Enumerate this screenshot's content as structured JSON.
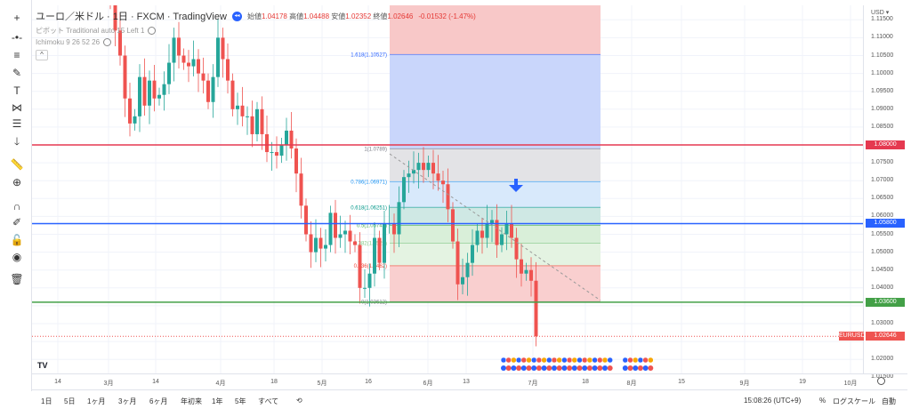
{
  "legend": {
    "symbol": "ユーロ／米ドル · 1日 · FXCM · TradingView",
    "ohlc": [
      {
        "k": "始値",
        "v": "1.04178"
      },
      {
        "k": "高値",
        "v": "1.04488"
      },
      {
        "k": "安値",
        "v": "1.02352"
      },
      {
        "k": "終値",
        "v": "1.02646"
      }
    ],
    "change": "-0.01532 (-1.47%)",
    "indicators": [
      "ピボット Traditional auto 15 Left 1",
      "Ichimoku 9 26 52 26"
    ],
    "collapse": "^"
  },
  "toolbar": [
    {
      "icon": "crosshair-icon",
      "g": "+"
    },
    {
      "icon": "horizontal-line-icon",
      "g": "-•-"
    },
    {
      "icon": "channel-icon",
      "g": "≡"
    },
    {
      "icon": "brush-icon",
      "g": "✎"
    },
    {
      "icon": "text-icon",
      "g": "T"
    },
    {
      "icon": "pattern-icon",
      "g": "⋈"
    },
    {
      "icon": "forecast-icon",
      "g": "☰"
    },
    {
      "icon": "arrow-down-icon",
      "g": "🡓"
    },
    {
      "icon": "ruler-icon",
      "g": "📏"
    },
    {
      "icon": "zoom-icon",
      "g": "⊕"
    },
    {
      "icon": "magnet-icon",
      "g": "∩"
    },
    {
      "icon": "lock-drawings-icon",
      "g": "✐"
    },
    {
      "icon": "lock-icon",
      "g": "🔓"
    },
    {
      "icon": "eye-icon",
      "g": "◉"
    },
    {
      "icon": "trash-icon",
      "g": "🗑"
    }
  ],
  "price_axis": {
    "currency": "USD ▾",
    "labels": [
      "1.11500",
      "1.11000",
      "1.10500",
      "1.10000",
      "1.09500",
      "1.09000",
      "1.08500",
      "1.07500",
      "1.07000",
      "1.06500",
      "1.06000",
      "1.05500",
      "1.05000",
      "1.04500",
      "1.04000",
      "1.03000",
      "1.02000",
      "1.01500"
    ]
  },
  "hlines": [
    {
      "price": "1.08000",
      "color": "#e53950"
    },
    {
      "price": "1.05800",
      "color": "#2962ff"
    },
    {
      "price": "1.03600",
      "color": "#43a047"
    }
  ],
  "last_price": {
    "symbol": "EURUSD",
    "price": "1.02646",
    "color": "#ef5350"
  },
  "fib": {
    "levels": [
      {
        "label": "1.618(1.10527)",
        "p": 1.10527,
        "color": "#2962ff"
      },
      {
        "label": "1(1.0789)",
        "p": 1.0789,
        "color": "#787b86"
      },
      {
        "label": "0.786(1.06971)",
        "p": 1.06971,
        "color": "#2196f3"
      },
      {
        "label": "0.618(1.06251)",
        "p": 1.06251,
        "color": "#009688"
      },
      {
        "label": "0.5(1.05749)",
        "p": 1.05749,
        "color": "#4caf50"
      },
      {
        "label": "0.382(1.0525)",
        "p": 1.0525,
        "color": "#81c784"
      },
      {
        "label": "0.236(1.0462)",
        "p": 1.0462,
        "color": "#f44336"
      },
      {
        "label": "0(1.03612)",
        "p": 1.03612,
        "color": "#787b86"
      }
    ]
  },
  "chart_data": {
    "type": "candlestick",
    "symbol": "EURUSD",
    "interval": "1D",
    "up_color": "#26a69a",
    "down_color": "#ef5350",
    "closes": [
      1.12,
      1.112,
      1.105,
      1.093,
      1.086,
      1.088,
      1.099,
      1.091,
      1.098,
      1.093,
      1.094,
      1.097,
      1.103,
      1.11,
      1.105,
      1.103,
      1.102,
      1.104,
      1.1,
      1.098,
      1.092,
      1.099,
      1.11,
      1.104,
      1.098,
      1.09,
      1.091,
      1.088,
      1.088,
      1.083,
      1.09,
      1.083,
      1.078,
      1.078,
      1.077,
      1.08,
      1.084,
      1.079,
      1.072,
      1.063,
      1.055,
      1.05,
      1.054,
      1.051,
      1.052,
      1.061,
      1.054,
      1.055,
      1.056,
      1.053,
      1.052,
      1.04,
      1.04,
      1.044,
      1.054,
      1.047,
      1.058,
      1.058,
      1.055,
      1.064,
      1.071,
      1.072,
      1.073,
      1.075,
      1.073,
      1.075,
      1.072,
      1.07,
      1.069,
      1.062,
      1.053,
      1.041,
      1.043,
      1.047,
      1.052,
      1.056,
      1.054,
      1.058,
      1.059,
      1.052,
      1.055,
      1.058,
      1.054,
      1.048,
      1.044,
      1.045,
      1.042,
      1.02646
    ],
    "x_ticks": [
      "14",
      "3月",
      "14",
      "4月",
      "18",
      "5月",
      "16",
      "6月",
      "13",
      "7月",
      "18",
      "8月",
      "15",
      "9月",
      "19",
      "10月"
    ]
  },
  "bottom": {
    "ranges": [
      "1日",
      "5日",
      "1ヶ月",
      "3ヶ月",
      "6ヶ月",
      "年初来",
      "1年",
      "5年",
      "すべて"
    ],
    "time": "15:08:26 (UTC+9)",
    "percent": "%",
    "log": "ログスケール",
    "auto": "自動"
  }
}
